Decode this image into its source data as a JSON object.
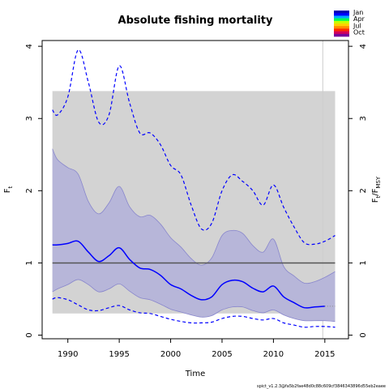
{
  "chart_data": {
    "type": "line",
    "title": "Absolute fishing mortality",
    "xlabel": "Time",
    "ylabel_left": "F",
    "ylabel_left_sub": "t",
    "ylabel_right_main": "F",
    "ylabel_right_sub": "t",
    "ylabel_right_den": "F",
    "ylabel_right_den_sub": "MSY",
    "xlim": [
      1987.5,
      2017.3
    ],
    "ylim": [
      -0.05,
      4.08
    ],
    "x_ticks": [
      1990,
      1995,
      2000,
      2005,
      2010,
      2015
    ],
    "y_ticks": [
      0,
      1,
      2,
      3,
      4
    ],
    "y_ticks_right": [
      0,
      1,
      2,
      3,
      4
    ],
    "fmsy": 1.0,
    "fmsy_ci": [
      0.3,
      3.38
    ],
    "fmsy_ci_x": [
      1988.5,
      2016
    ],
    "vline_x": 2014.8,
    "x": [
      1988.5,
      1989,
      1990,
      1991,
      1992,
      1993,
      1994,
      1995,
      1996,
      1997,
      1998,
      1999,
      2000,
      2001,
      2002,
      2003,
      2004,
      2005,
      2006,
      2007,
      2008,
      2009,
      2010,
      2011,
      2012,
      2013,
      2014,
      2015,
      2016
    ],
    "series": [
      {
        "name": "F",
        "values": [
          1.25,
          1.25,
          1.27,
          1.3,
          1.15,
          1.02,
          1.1,
          1.21,
          1.05,
          0.93,
          0.91,
          0.83,
          0.7,
          0.64,
          0.55,
          0.49,
          0.53,
          0.7,
          0.76,
          0.74,
          0.65,
          0.6,
          0.68,
          0.53,
          0.45,
          0.38,
          0.39,
          0.4,
          null
        ]
      },
      {
        "name": "F_upper",
        "values": [
          2.58,
          2.43,
          2.32,
          2.23,
          1.85,
          1.68,
          1.83,
          2.06,
          1.78,
          1.64,
          1.66,
          1.54,
          1.35,
          1.22,
          1.06,
          0.97,
          1.07,
          1.38,
          1.45,
          1.41,
          1.24,
          1.15,
          1.33,
          0.95,
          0.82,
          0.72,
          0.74,
          0.8,
          0.88
        ]
      },
      {
        "name": "F_lower",
        "values": [
          0.6,
          0.64,
          0.7,
          0.77,
          0.7,
          0.6,
          0.64,
          0.71,
          0.61,
          0.52,
          0.49,
          0.43,
          0.36,
          0.32,
          0.28,
          0.25,
          0.27,
          0.35,
          0.39,
          0.39,
          0.34,
          0.31,
          0.35,
          0.28,
          0.23,
          0.2,
          0.2,
          0.2,
          0.19
        ]
      },
      {
        "name": "F_upper_dashed",
        "values": [
          3.12,
          3.05,
          3.3,
          3.95,
          3.5,
          2.95,
          3.05,
          3.73,
          3.22,
          2.8,
          2.8,
          2.64,
          2.35,
          2.22,
          1.8,
          1.47,
          1.55,
          2.0,
          2.22,
          2.13,
          2.0,
          1.8,
          2.08,
          1.77,
          1.5,
          1.28,
          1.26,
          1.3,
          1.38
        ]
      },
      {
        "name": "F_lower_dashed",
        "values": [
          0.5,
          0.52,
          0.49,
          0.42,
          0.35,
          0.34,
          0.38,
          0.41,
          0.35,
          0.31,
          0.3,
          0.26,
          0.22,
          0.19,
          0.17,
          0.17,
          0.18,
          0.23,
          0.26,
          0.26,
          0.23,
          0.21,
          0.23,
          0.17,
          0.14,
          0.11,
          0.12,
          0.12,
          0.11
        ]
      }
    ],
    "legend": {
      "labels": [
        "Jan",
        "Apr",
        "Jul",
        "Oct"
      ],
      "colors": [
        "#0000b4",
        "#0000ff",
        "#00aaff",
        "#00ff55",
        "#c8ff00",
        "#ffd200",
        "#ff8c00",
        "#ff2800",
        "#d2005a",
        "#78009b"
      ]
    },
    "colors": {
      "ci_fill": "#b7b6d9",
      "ci_edge": "#8886cc",
      "line": "#0000ff",
      "msy_band": "#d3d3d3",
      "msy_line": "#555555",
      "vline": "#cccccc",
      "tail_dots": "#888888"
    }
  },
  "footer": "spict_v1.2.3@fa5b2fae48d0c88c609cf3846343896d55eb2eaee"
}
